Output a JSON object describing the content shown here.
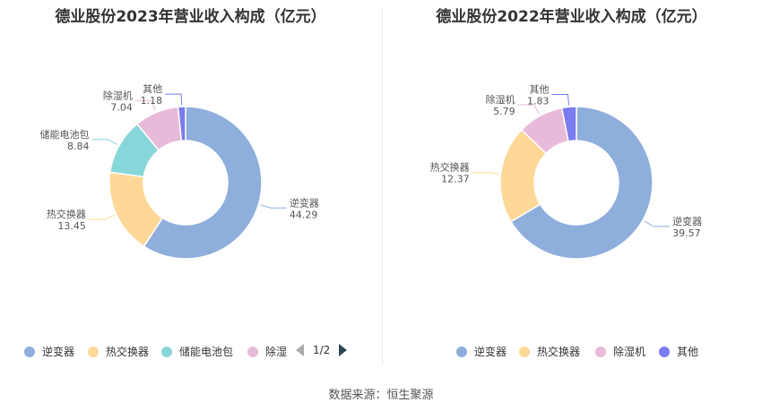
{
  "chart_data": [
    {
      "type": "pie",
      "title": "德业股份2023年营业收入构成（亿元）",
      "categories": [
        "逆变器",
        "热交换器",
        "储能电池包",
        "除湿机",
        "其他"
      ],
      "values": [
        44.29,
        13.45,
        8.84,
        7.04,
        1.18
      ],
      "value_labels": [
        "44.29",
        "13.45",
        "8.84",
        "7.04",
        "1.18"
      ],
      "colors": [
        "#8eaedb",
        "#fdd896",
        "#87d6da",
        "#e8bad9",
        "#7b7cf0"
      ],
      "legend_labels": [
        "逆变器",
        "热交换器",
        "储能电池包",
        "除湿"
      ],
      "legend_pager": "1/2",
      "legend_position": "bottom"
    },
    {
      "type": "pie",
      "title": "德业股份2022年营业收入构成（亿元）",
      "categories": [
        "逆变器",
        "热交换器",
        "除湿机",
        "其他"
      ],
      "values": [
        39.57,
        12.37,
        5.79,
        1.83
      ],
      "value_labels": [
        "39.57",
        "12.37",
        "5.79",
        "1.83"
      ],
      "colors": [
        "#8eaedb",
        "#fdd896",
        "#e8bad9",
        "#7b7cf0"
      ],
      "legend_labels": [
        "逆变器",
        "热交换器",
        "除湿机",
        "其他"
      ],
      "legend_position": "bottom"
    }
  ],
  "source": "数据来源：恒生聚源"
}
